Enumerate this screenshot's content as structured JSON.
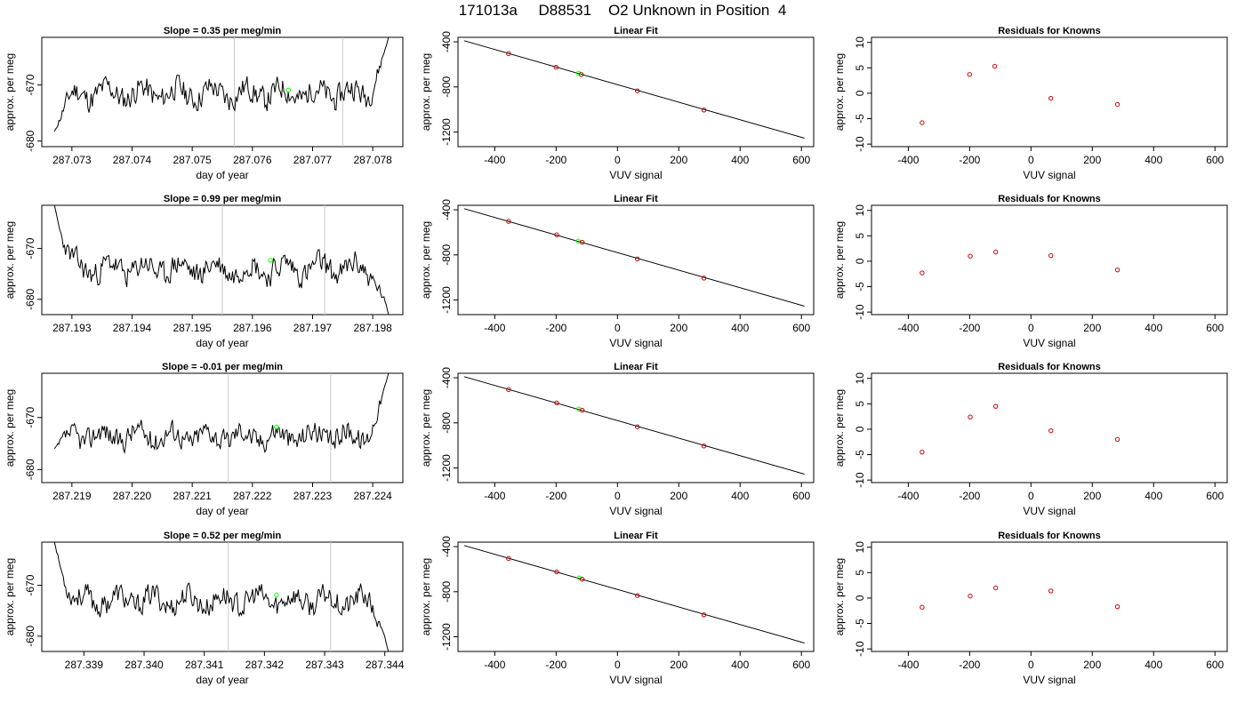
{
  "header": {
    "title": "171013a     D88531    O2 Unknown in Position  4"
  },
  "colors": {
    "trace": "#000000",
    "marker": "#00ff00",
    "knowns": "#cc0000",
    "fit_line": "#000000",
    "window_line": "#c8c8c8"
  },
  "chart_data": [
    {
      "type": "line",
      "row": 1,
      "title": "Slope =  0.35  per meg/min",
      "xlabel": "day of year",
      "ylabel": "approx. per meg",
      "xlim": [
        287.0725,
        287.0785
      ],
      "ylim": [
        -681.0,
        -661.5
      ],
      "xticks": [
        "287.073",
        "287.074",
        "287.075",
        "287.076",
        "287.077",
        "287.078"
      ],
      "yticks": [
        "-670",
        "-680"
      ],
      "window_lines": [
        287.0757,
        287.0775
      ],
      "marker": {
        "x": 287.0766,
        "y": -670.9
      },
      "trace": {
        "seed": 11,
        "start": -678.3,
        "end": -661.5,
        "base": -671.5,
        "amp": 2.0
      }
    },
    {
      "type": "scatter",
      "row": 1,
      "title": "Linear Fit",
      "xlabel": "VUV signal",
      "ylabel": "approx. per meg",
      "xlim": [
        -520,
        640
      ],
      "ylim": [
        -1330,
        -360
      ],
      "xticks": [
        "-400",
        "-200",
        "0",
        "200",
        "400",
        "600"
      ],
      "yticks": [
        "-400",
        "-800",
        "-1200"
      ],
      "knowns": [
        {
          "x": -355,
          "y": -505
        },
        {
          "x": -200,
          "y": -625
        },
        {
          "x": -118,
          "y": -690
        },
        {
          "x": 65,
          "y": -835
        },
        {
          "x": 282,
          "y": -1005
        }
      ],
      "unknown": [
        {
          "x": -127,
          "y": -678
        }
      ],
      "fit_line": {
        "x": [
          -500,
          610
        ],
        "y": [
          -390,
          -1255
        ]
      }
    },
    {
      "type": "scatter",
      "row": 1,
      "title": "Residuals for Knowns",
      "xlabel": "VUV signal",
      "ylabel": "approx. per meg",
      "xlim": [
        -520,
        640
      ],
      "ylim": [
        -10.5,
        11
      ],
      "xticks": [
        "-400",
        "-200",
        "0",
        "200",
        "400",
        "600"
      ],
      "yticks": [
        "-10",
        "-5",
        "0",
        "5",
        "10"
      ],
      "points": [
        {
          "x": -355,
          "y": -5.8
        },
        {
          "x": -200,
          "y": 3.7
        },
        {
          "x": -118,
          "y": 5.3
        },
        {
          "x": 65,
          "y": -1.0
        },
        {
          "x": 282,
          "y": -2.2
        }
      ]
    },
    {
      "type": "line",
      "row": 2,
      "title": "Slope =  0.99  per meg/min",
      "xlabel": "day of year",
      "ylabel": "approx. per meg",
      "xlim": [
        287.1925,
        287.1985
      ],
      "ylim": [
        -683.0,
        -661.5
      ],
      "xticks": [
        "287.193",
        "287.194",
        "287.195",
        "287.196",
        "287.197",
        "287.198"
      ],
      "yticks": [
        "-670",
        "-680"
      ],
      "window_lines": [
        287.1955,
        287.1972
      ],
      "marker": {
        "x": 287.1963,
        "y": -672.3
      },
      "trace": {
        "seed": 23,
        "start": -661.5,
        "end": -683.0,
        "base": -674.0,
        "amp": 2.2
      }
    },
    {
      "type": "scatter",
      "row": 2,
      "title": "Linear Fit",
      "xlabel": "VUV signal",
      "ylabel": "approx. per meg",
      "xlim": [
        -520,
        640
      ],
      "ylim": [
        -1330,
        -360
      ],
      "xticks": [
        "-400",
        "-200",
        "0",
        "200",
        "400",
        "600"
      ],
      "yticks": [
        "-400",
        "-800",
        "-1200"
      ],
      "knowns": [
        {
          "x": -355,
          "y": -503
        },
        {
          "x": -198,
          "y": -622
        },
        {
          "x": -115,
          "y": -688
        },
        {
          "x": 65,
          "y": -836
        },
        {
          "x": 282,
          "y": -1006
        }
      ],
      "unknown": [
        {
          "x": -128,
          "y": -677
        }
      ],
      "fit_line": {
        "x": [
          -500,
          610
        ],
        "y": [
          -390,
          -1255
        ]
      }
    },
    {
      "type": "scatter",
      "row": 2,
      "title": "Residuals for Knowns",
      "xlabel": "VUV signal",
      "ylabel": "approx. per meg",
      "xlim": [
        -520,
        640
      ],
      "ylim": [
        -10.5,
        11
      ],
      "xticks": [
        "-400",
        "-200",
        "0",
        "200",
        "400",
        "600"
      ],
      "yticks": [
        "-10",
        "-5",
        "0",
        "5",
        "10"
      ],
      "points": [
        {
          "x": -355,
          "y": -2.3
        },
        {
          "x": -198,
          "y": 1.0
        },
        {
          "x": -115,
          "y": 1.8
        },
        {
          "x": 65,
          "y": 1.1
        },
        {
          "x": 282,
          "y": -1.7
        }
      ]
    },
    {
      "type": "line",
      "row": 3,
      "title": "Slope =  -0.01  per meg/min",
      "xlabel": "day of year",
      "ylabel": "approx. per meg",
      "xlim": [
        287.2185,
        287.2245
      ],
      "ylim": [
        -682.5,
        -661.5
      ],
      "xticks": [
        "287.219",
        "287.220",
        "287.221",
        "287.222",
        "287.223",
        "287.224"
      ],
      "yticks": [
        "-670",
        "-680"
      ],
      "window_lines": [
        287.2216,
        287.2233
      ],
      "marker": {
        "x": 287.2224,
        "y": -671.8
      },
      "trace": {
        "seed": 37,
        "start": -676.0,
        "end": -661.5,
        "base": -673.5,
        "amp": 2.0
      }
    },
    {
      "type": "scatter",
      "row": 3,
      "title": "Linear Fit",
      "xlabel": "VUV signal",
      "ylabel": "approx. per meg",
      "xlim": [
        -520,
        640
      ],
      "ylim": [
        -1330,
        -360
      ],
      "xticks": [
        "-400",
        "-200",
        "0",
        "200",
        "400",
        "600"
      ],
      "yticks": [
        "-400",
        "-800",
        "-1200"
      ],
      "knowns": [
        {
          "x": -355,
          "y": -505
        },
        {
          "x": -198,
          "y": -623
        },
        {
          "x": -115,
          "y": -688
        },
        {
          "x": 65,
          "y": -835
        },
        {
          "x": 282,
          "y": -1005
        }
      ],
      "unknown": [
        {
          "x": -126,
          "y": -677
        }
      ],
      "fit_line": {
        "x": [
          -500,
          610
        ],
        "y": [
          -390,
          -1255
        ]
      }
    },
    {
      "type": "scatter",
      "row": 3,
      "title": "Residuals for Knowns",
      "xlabel": "VUV signal",
      "ylabel": "approx. per meg",
      "xlim": [
        -520,
        640
      ],
      "ylim": [
        -10.5,
        11
      ],
      "xticks": [
        "-400",
        "-200",
        "0",
        "200",
        "400",
        "600"
      ],
      "yticks": [
        "-10",
        "-5",
        "0",
        "5",
        "10"
      ],
      "points": [
        {
          "x": -355,
          "y": -4.5
        },
        {
          "x": -198,
          "y": 2.4
        },
        {
          "x": -115,
          "y": 4.5
        },
        {
          "x": 65,
          "y": -0.3
        },
        {
          "x": 282,
          "y": -2.0
        }
      ]
    },
    {
      "type": "line",
      "row": 4,
      "title": "Slope =  0.52  per meg/min",
      "xlabel": "day of year",
      "ylabel": "approx. per meg",
      "xlim": [
        287.3383,
        287.3443
      ],
      "ylim": [
        -683.0,
        -661.5
      ],
      "xticks": [
        "287.339",
        "287.340",
        "287.341",
        "287.342",
        "287.343",
        "287.344"
      ],
      "yticks": [
        "-670",
        "-680"
      ],
      "window_lines": [
        287.3414,
        287.3431
      ],
      "marker": {
        "x": 287.3422,
        "y": -671.9
      },
      "trace": {
        "seed": 53,
        "start": -661.5,
        "end": -683.0,
        "base": -673.0,
        "amp": 2.1
      }
    },
    {
      "type": "scatter",
      "row": 4,
      "title": "Linear Fit",
      "xlabel": "VUV signal",
      "ylabel": "approx. per meg",
      "xlim": [
        -520,
        640
      ],
      "ylim": [
        -1330,
        -360
      ],
      "xticks": [
        "-400",
        "-200",
        "0",
        "200",
        "400",
        "600"
      ],
      "yticks": [
        "-400",
        "-800",
        "-1200"
      ],
      "knowns": [
        {
          "x": -355,
          "y": -505
        },
        {
          "x": -198,
          "y": -624
        },
        {
          "x": -115,
          "y": -689
        },
        {
          "x": 65,
          "y": -834
        },
        {
          "x": 282,
          "y": -1005
        }
      ],
      "unknown": [
        {
          "x": -124,
          "y": -677
        }
      ],
      "fit_line": {
        "x": [
          -500,
          610
        ],
        "y": [
          -390,
          -1255
        ]
      }
    },
    {
      "type": "scatter",
      "row": 4,
      "title": "Residuals for Knowns",
      "xlabel": "VUV signal",
      "ylabel": "approx. per meg",
      "xlim": [
        -520,
        640
      ],
      "ylim": [
        -10.5,
        11
      ],
      "xticks": [
        "-400",
        "-200",
        "0",
        "200",
        "400",
        "600"
      ],
      "yticks": [
        "-10",
        "-5",
        "0",
        "5",
        "10"
      ],
      "points": [
        {
          "x": -355,
          "y": -1.8
        },
        {
          "x": -198,
          "y": 0.4
        },
        {
          "x": -115,
          "y": 2.0
        },
        {
          "x": 65,
          "y": 1.4
        },
        {
          "x": 282,
          "y": -1.7
        }
      ]
    }
  ]
}
